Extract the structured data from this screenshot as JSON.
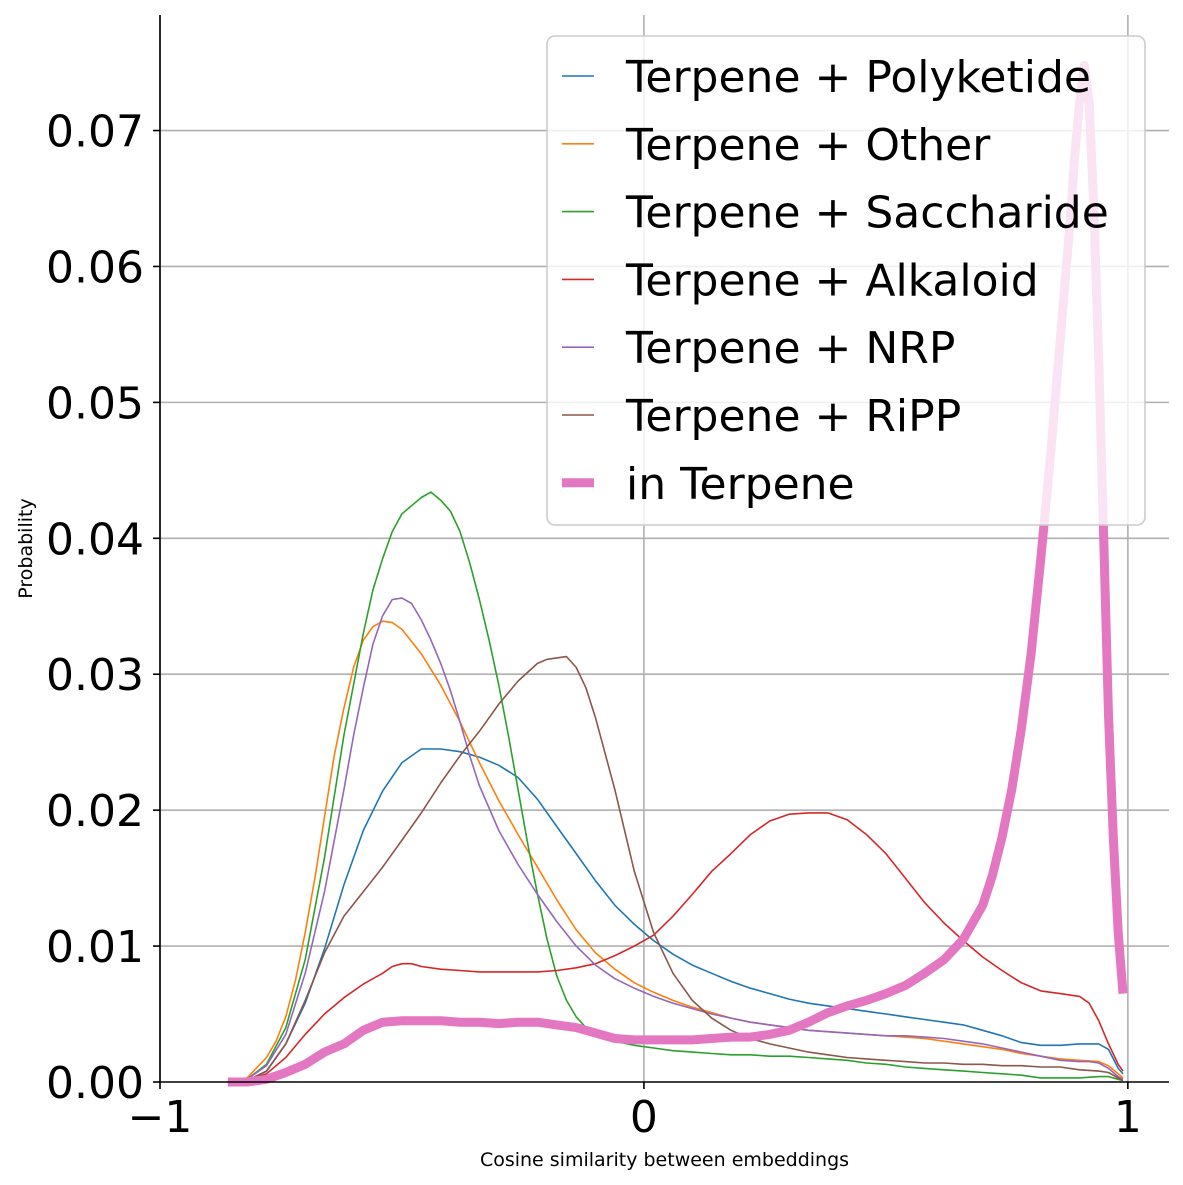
{
  "chart_data": {
    "type": "line",
    "xlabel": "Cosine similarity between embeddings",
    "ylabel": "Probability",
    "xlim": [
      -1,
      1.085
    ],
    "ylim": [
      0,
      0.0785
    ],
    "xticks": [
      -1,
      0,
      1
    ],
    "xtick_labels": [
      "−1",
      "0",
      "1"
    ],
    "yticks": [
      0,
      0.01,
      0.02,
      0.03,
      0.04,
      0.05,
      0.06,
      0.07
    ],
    "ytick_labels": [
      "0.00",
      "0.01",
      "0.02",
      "0.03",
      "0.04",
      "0.05",
      "0.06",
      "0.07"
    ],
    "grid": true,
    "legend_position": "top-right",
    "series": [
      {
        "name": "Terpene + Polyketide",
        "color": "#1f77b4",
        "width": 1.6,
        "x": [
          -0.86,
          -0.82,
          -0.78,
          -0.74,
          -0.7,
          -0.66,
          -0.62,
          -0.58,
          -0.54,
          -0.5,
          -0.46,
          -0.42,
          -0.38,
          -0.34,
          -0.3,
          -0.26,
          -0.22,
          -0.18,
          -0.14,
          -0.1,
          -0.06,
          -0.02,
          0.02,
          0.06,
          0.1,
          0.14,
          0.18,
          0.22,
          0.26,
          0.3,
          0.34,
          0.38,
          0.42,
          0.46,
          0.5,
          0.54,
          0.58,
          0.62,
          0.66,
          0.7,
          0.74,
          0.78,
          0.82,
          0.86,
          0.9,
          0.94,
          0.96,
          0.98,
          0.99
        ],
        "y": [
          0.0,
          0.0001,
          0.0008,
          0.0028,
          0.0058,
          0.0098,
          0.0145,
          0.0185,
          0.0214,
          0.0235,
          0.0245,
          0.0245,
          0.0243,
          0.0239,
          0.0233,
          0.0224,
          0.0208,
          0.0188,
          0.0168,
          0.0148,
          0.013,
          0.0116,
          0.0104,
          0.0094,
          0.0086,
          0.008,
          0.0074,
          0.0069,
          0.0065,
          0.0061,
          0.0058,
          0.0056,
          0.0054,
          0.0052,
          0.005,
          0.0048,
          0.0046,
          0.0044,
          0.0042,
          0.0038,
          0.0034,
          0.0029,
          0.0027,
          0.0027,
          0.0028,
          0.0028,
          0.0024,
          0.001,
          0.0006
        ]
      },
      {
        "name": "Terpene + Other",
        "color": "#ff7f0e",
        "width": 1.6,
        "x": [
          -0.86,
          -0.82,
          -0.78,
          -0.76,
          -0.74,
          -0.72,
          -0.7,
          -0.68,
          -0.66,
          -0.64,
          -0.62,
          -0.6,
          -0.58,
          -0.56,
          -0.54,
          -0.52,
          -0.5,
          -0.46,
          -0.42,
          -0.38,
          -0.34,
          -0.3,
          -0.26,
          -0.22,
          -0.18,
          -0.14,
          -0.1,
          -0.06,
          -0.02,
          0.02,
          0.06,
          0.1,
          0.14,
          0.18,
          0.22,
          0.26,
          0.3,
          0.34,
          0.38,
          0.42,
          0.46,
          0.5,
          0.54,
          0.58,
          0.62,
          0.66,
          0.7,
          0.74,
          0.78,
          0.82,
          0.86,
          0.9,
          0.94,
          0.96,
          0.98,
          0.99
        ],
        "y": [
          0.0,
          0.0003,
          0.0018,
          0.003,
          0.0048,
          0.0075,
          0.011,
          0.015,
          0.0195,
          0.024,
          0.0275,
          0.0305,
          0.0325,
          0.0335,
          0.0339,
          0.0338,
          0.0333,
          0.0315,
          0.0292,
          0.0265,
          0.0235,
          0.0207,
          0.0182,
          0.0158,
          0.0134,
          0.0112,
          0.0095,
          0.0083,
          0.0073,
          0.0066,
          0.006,
          0.0055,
          0.0051,
          0.0047,
          0.0044,
          0.0042,
          0.004,
          0.0038,
          0.0037,
          0.0036,
          0.0035,
          0.0034,
          0.0033,
          0.0032,
          0.003,
          0.0028,
          0.0026,
          0.0024,
          0.0021,
          0.0019,
          0.0017,
          0.0016,
          0.0015,
          0.0012,
          0.0006,
          0.0003
        ]
      },
      {
        "name": "Terpene + Saccharide",
        "color": "#2ca02c",
        "width": 1.6,
        "x": [
          -0.86,
          -0.82,
          -0.78,
          -0.74,
          -0.7,
          -0.66,
          -0.62,
          -0.58,
          -0.56,
          -0.54,
          -0.52,
          -0.5,
          -0.48,
          -0.46,
          -0.44,
          -0.42,
          -0.4,
          -0.38,
          -0.36,
          -0.34,
          -0.32,
          -0.3,
          -0.28,
          -0.26,
          -0.24,
          -0.22,
          -0.2,
          -0.18,
          -0.16,
          -0.14,
          -0.12,
          -0.1,
          -0.06,
          -0.02,
          0.02,
          0.06,
          0.1,
          0.14,
          0.18,
          0.22,
          0.26,
          0.3,
          0.34,
          0.38,
          0.42,
          0.46,
          0.5,
          0.54,
          0.58,
          0.62,
          0.66,
          0.7,
          0.74,
          0.78,
          0.82,
          0.86,
          0.9,
          0.94,
          0.96,
          0.98,
          0.99
        ],
        "y": [
          0.0,
          0.0002,
          0.0013,
          0.004,
          0.009,
          0.0165,
          0.0255,
          0.033,
          0.0362,
          0.0385,
          0.0405,
          0.0418,
          0.0424,
          0.043,
          0.0434,
          0.0428,
          0.042,
          0.0405,
          0.0382,
          0.0355,
          0.0325,
          0.0292,
          0.0255,
          0.0215,
          0.0175,
          0.0138,
          0.0105,
          0.0078,
          0.006,
          0.0048,
          0.004,
          0.0035,
          0.003,
          0.0027,
          0.0025,
          0.0023,
          0.0022,
          0.0021,
          0.002,
          0.002,
          0.0019,
          0.0019,
          0.0018,
          0.0017,
          0.0016,
          0.0014,
          0.0013,
          0.0011,
          0.001,
          0.0009,
          0.0008,
          0.0007,
          0.0006,
          0.0005,
          0.0003,
          0.0003,
          0.0003,
          0.0004,
          0.0004,
          0.0002,
          0.0001
        ]
      },
      {
        "name": "Terpene + Alkaloid",
        "color": "#d62728",
        "width": 1.6,
        "x": [
          -0.86,
          -0.82,
          -0.78,
          -0.74,
          -0.7,
          -0.66,
          -0.62,
          -0.58,
          -0.54,
          -0.52,
          -0.5,
          -0.48,
          -0.46,
          -0.42,
          -0.38,
          -0.34,
          -0.3,
          -0.26,
          -0.22,
          -0.18,
          -0.14,
          -0.1,
          -0.06,
          -0.02,
          0.02,
          0.06,
          0.1,
          0.14,
          0.18,
          0.22,
          0.26,
          0.3,
          0.34,
          0.38,
          0.42,
          0.46,
          0.5,
          0.54,
          0.58,
          0.62,
          0.66,
          0.7,
          0.74,
          0.78,
          0.82,
          0.86,
          0.9,
          0.92,
          0.94,
          0.96,
          0.98,
          0.99
        ],
        "y": [
          0.0,
          0.0001,
          0.0006,
          0.0018,
          0.0035,
          0.005,
          0.0062,
          0.0072,
          0.008,
          0.0085,
          0.0087,
          0.0087,
          0.0085,
          0.0083,
          0.0082,
          0.0081,
          0.0081,
          0.0081,
          0.0081,
          0.0082,
          0.0084,
          0.0087,
          0.0093,
          0.01,
          0.0108,
          0.0122,
          0.0138,
          0.0155,
          0.0168,
          0.0182,
          0.0192,
          0.0197,
          0.0198,
          0.0198,
          0.0193,
          0.0182,
          0.0168,
          0.015,
          0.0132,
          0.0117,
          0.0104,
          0.0092,
          0.0082,
          0.0073,
          0.0067,
          0.0065,
          0.0063,
          0.0058,
          0.0045,
          0.0028,
          0.0013,
          0.0008
        ]
      },
      {
        "name": "Terpene + NRP",
        "color": "#9467bd",
        "width": 1.6,
        "x": [
          -0.86,
          -0.82,
          -0.78,
          -0.74,
          -0.7,
          -0.66,
          -0.62,
          -0.6,
          -0.58,
          -0.56,
          -0.54,
          -0.52,
          -0.5,
          -0.48,
          -0.46,
          -0.44,
          -0.42,
          -0.4,
          -0.38,
          -0.36,
          -0.34,
          -0.3,
          -0.26,
          -0.22,
          -0.18,
          -0.14,
          -0.1,
          -0.06,
          -0.02,
          0.02,
          0.06,
          0.1,
          0.14,
          0.18,
          0.22,
          0.26,
          0.3,
          0.34,
          0.38,
          0.42,
          0.46,
          0.5,
          0.54,
          0.58,
          0.62,
          0.66,
          0.7,
          0.74,
          0.78,
          0.82,
          0.86,
          0.9,
          0.92,
          0.94,
          0.96,
          0.98,
          0.99
        ],
        "y": [
          0.0,
          0.0002,
          0.0012,
          0.0035,
          0.008,
          0.014,
          0.0215,
          0.0255,
          0.029,
          0.0322,
          0.0343,
          0.0355,
          0.0356,
          0.0352,
          0.034,
          0.0325,
          0.0308,
          0.0288,
          0.0265,
          0.024,
          0.0218,
          0.0185,
          0.016,
          0.0138,
          0.0118,
          0.01,
          0.0086,
          0.0076,
          0.0069,
          0.0063,
          0.0058,
          0.0054,
          0.005,
          0.0047,
          0.0044,
          0.0042,
          0.004,
          0.0038,
          0.0037,
          0.0036,
          0.0035,
          0.0034,
          0.0034,
          0.0033,
          0.0032,
          0.003,
          0.0028,
          0.0025,
          0.0022,
          0.0019,
          0.0016,
          0.0015,
          0.0015,
          0.0014,
          0.001,
          0.0004,
          0.0002
        ]
      },
      {
        "name": "Terpene + RiPP",
        "color": "#8c564b",
        "width": 1.6,
        "x": [
          -0.86,
          -0.82,
          -0.78,
          -0.74,
          -0.7,
          -0.66,
          -0.62,
          -0.58,
          -0.54,
          -0.5,
          -0.46,
          -0.42,
          -0.38,
          -0.34,
          -0.3,
          -0.26,
          -0.22,
          -0.2,
          -0.18,
          -0.16,
          -0.14,
          -0.12,
          -0.1,
          -0.06,
          -0.02,
          0.02,
          0.06,
          0.1,
          0.14,
          0.18,
          0.22,
          0.26,
          0.3,
          0.34,
          0.38,
          0.42,
          0.46,
          0.5,
          0.54,
          0.58,
          0.62,
          0.66,
          0.7,
          0.74,
          0.78,
          0.82,
          0.86,
          0.9,
          0.94,
          0.96,
          0.98,
          0.99
        ],
        "y": [
          0.0,
          0.0001,
          0.0008,
          0.0028,
          0.006,
          0.0095,
          0.0122,
          0.014,
          0.0158,
          0.0178,
          0.0198,
          0.022,
          0.024,
          0.0258,
          0.0278,
          0.0295,
          0.0308,
          0.0311,
          0.0312,
          0.0313,
          0.0305,
          0.029,
          0.0268,
          0.0215,
          0.0155,
          0.011,
          0.008,
          0.006,
          0.0047,
          0.0038,
          0.0032,
          0.0028,
          0.0025,
          0.0022,
          0.002,
          0.0018,
          0.0017,
          0.0016,
          0.0015,
          0.0014,
          0.0014,
          0.0013,
          0.0013,
          0.0012,
          0.0012,
          0.0011,
          0.0011,
          0.0009,
          0.0008,
          0.0007,
          0.0003,
          0.0001
        ]
      },
      {
        "name": "in Terpene",
        "color": "#e377c2",
        "width": 9,
        "x": [
          -0.86,
          -0.82,
          -0.78,
          -0.74,
          -0.7,
          -0.66,
          -0.62,
          -0.58,
          -0.54,
          -0.5,
          -0.46,
          -0.42,
          -0.38,
          -0.34,
          -0.3,
          -0.26,
          -0.22,
          -0.18,
          -0.14,
          -0.1,
          -0.06,
          -0.02,
          0.02,
          0.06,
          0.1,
          0.14,
          0.18,
          0.22,
          0.26,
          0.3,
          0.34,
          0.38,
          0.42,
          0.46,
          0.5,
          0.54,
          0.58,
          0.62,
          0.66,
          0.7,
          0.72,
          0.74,
          0.76,
          0.78,
          0.8,
          0.82,
          0.84,
          0.86,
          0.88,
          0.89,
          0.9,
          0.91,
          0.92,
          0.93,
          0.94,
          0.95,
          0.96,
          0.97,
          0.98,
          0.99
        ],
        "y": [
          0.0,
          0.0,
          0.0002,
          0.0007,
          0.0013,
          0.0022,
          0.0028,
          0.0038,
          0.0044,
          0.0045,
          0.0045,
          0.0045,
          0.0044,
          0.0044,
          0.0043,
          0.0044,
          0.0044,
          0.0042,
          0.004,
          0.0036,
          0.0032,
          0.0031,
          0.0031,
          0.0031,
          0.0031,
          0.0032,
          0.0033,
          0.0033,
          0.0035,
          0.0038,
          0.0044,
          0.0051,
          0.0056,
          0.006,
          0.0065,
          0.0071,
          0.008,
          0.009,
          0.0105,
          0.013,
          0.0152,
          0.018,
          0.0215,
          0.026,
          0.0315,
          0.0385,
          0.046,
          0.0545,
          0.063,
          0.068,
          0.072,
          0.0748,
          0.072,
          0.064,
          0.053,
          0.04,
          0.027,
          0.018,
          0.011,
          0.0065
        ]
      }
    ]
  }
}
